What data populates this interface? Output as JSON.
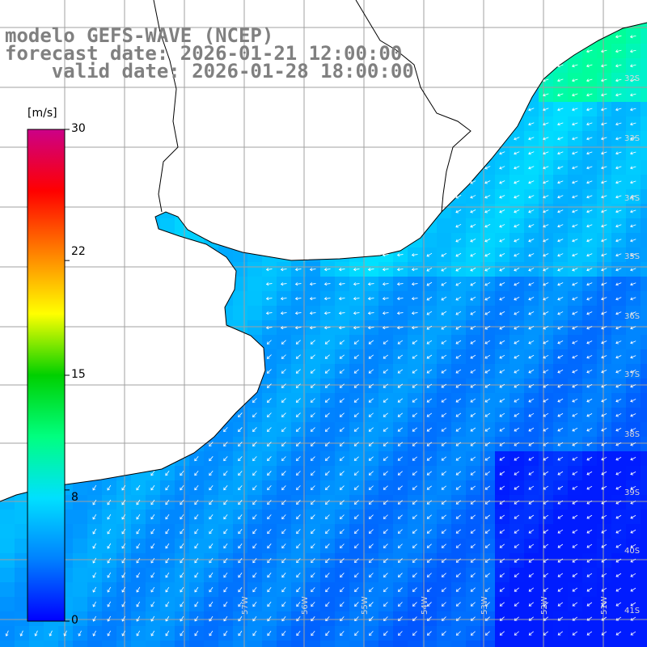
{
  "title": {
    "model": "modelo GEFS-WAVE (NCEP)",
    "forecast": "forecast date: 2026-01-21 12:00:00",
    "valid": "    valid date: 2026-01-28 18:00:00"
  },
  "colorbar": {
    "unit": "[m/s]",
    "ticks": [
      "30",
      "22",
      "15",
      "8",
      "0"
    ],
    "tick_values": [
      30,
      22,
      15,
      8,
      0
    ],
    "range": [
      0,
      30
    ],
    "colors": [
      "#0000ff",
      "#0080ff",
      "#00e0ff",
      "#00ff80",
      "#00d000",
      "#ffff00",
      "#ff8000",
      "#ff0000",
      "#cc0088"
    ]
  },
  "map": {
    "lat_labels": [
      "32S",
      "33S",
      "34S",
      "35S",
      "36S",
      "37S",
      "38S",
      "39S",
      "40S",
      "41S"
    ],
    "lon_labels": [
      "57W",
      "56W",
      "55W",
      "54W",
      "53W",
      "52W",
      "51W"
    ],
    "land_color": "#ffffff",
    "grid_color": "#a0a0a0",
    "coast_color": "#000000",
    "vector_color": "#ffffff"
  }
}
